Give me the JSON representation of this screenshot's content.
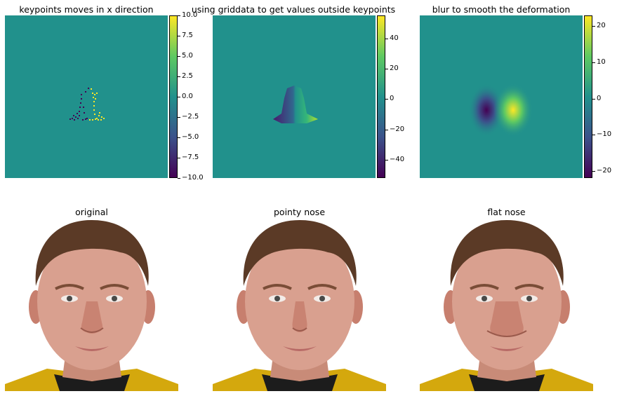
{
  "colors": {
    "viridis_low": "#440154",
    "viridis_mid": "#21918c",
    "viridis_high": "#fde725",
    "skin": "#d9a08f",
    "hair": "#5b3a26",
    "shirt": "#d4a80d"
  },
  "chart_data": [
    {
      "type": "heatmap",
      "title": "keypoints moves in x direction",
      "colorbar": {
        "range": [
          -10,
          10
        ],
        "ticks": [
          "10.0",
          "7.5",
          "5.0",
          "2.5",
          "0.0",
          "−2.5",
          "−5.0",
          "−7.5",
          "−10.0"
        ],
        "values": [
          10,
          7.5,
          5,
          2.5,
          0,
          -2.5,
          -5,
          -7.5,
          -10
        ]
      },
      "background_value": 0,
      "content": "scattered keypoints: left group negative (-10), right group positive (+10)"
    },
    {
      "type": "heatmap",
      "title": "using griddata to get values outside keypoints",
      "colorbar": {
        "range": [
          -52,
          55
        ],
        "ticks": [
          "40",
          "20",
          "0",
          "−20",
          "−40"
        ],
        "values": [
          40,
          20,
          0,
          -20,
          -40
        ]
      },
      "background_value": 0
    },
    {
      "type": "heatmap",
      "title": "blur to smooth the deformation",
      "colorbar": {
        "range": [
          -22,
          23
        ],
        "ticks": [
          "20",
          "10",
          "0",
          "−10",
          "−20"
        ],
        "values": [
          20,
          10,
          0,
          -10,
          -20
        ]
      },
      "background_value": 0
    }
  ],
  "images": [
    {
      "title": "original",
      "nose": "normal"
    },
    {
      "title": "pointy nose",
      "nose": "pointy"
    },
    {
      "title": "flat nose",
      "nose": "flat"
    }
  ]
}
